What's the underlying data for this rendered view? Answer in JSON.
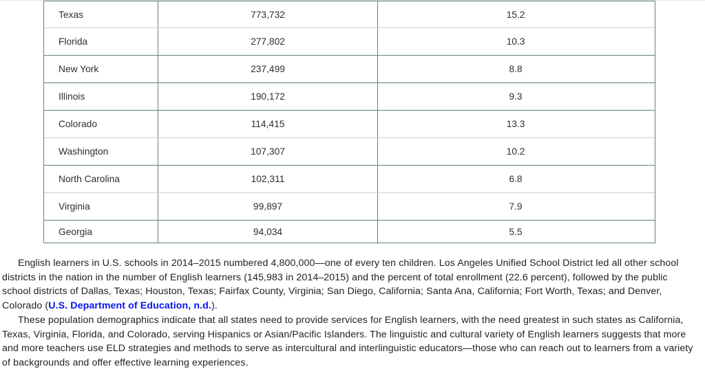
{
  "page": {
    "background_color": "#ffffff",
    "top_divider_color": "#e4e4e4"
  },
  "table": {
    "border_color_dark": "#627f7e",
    "border_color_light": "#c5d1cf",
    "rows": [
      {
        "state": "Texas",
        "english_learners": "773,732",
        "percent_of_enrollment": "15.2"
      },
      {
        "state": "Florida",
        "english_learners": "277,802",
        "percent_of_enrollment": "10.3"
      },
      {
        "state": "New York",
        "english_learners": "237,499",
        "percent_of_enrollment": "8.8"
      },
      {
        "state": "Illinois",
        "english_learners": "190,172",
        "percent_of_enrollment": "9.3"
      },
      {
        "state": "Colorado",
        "english_learners": "114,415",
        "percent_of_enrollment": "13.3"
      },
      {
        "state": "Washington",
        "english_learners": "107,307",
        "percent_of_enrollment": "10.2"
      },
      {
        "state": "North Carolina",
        "english_learners": "102,311",
        "percent_of_enrollment": "6.8"
      },
      {
        "state": "Virginia",
        "english_learners": "99,897",
        "percent_of_enrollment": "7.9"
      },
      {
        "state": "Georgia",
        "english_learners": "94,034",
        "percent_of_enrollment": "5.5"
      }
    ]
  },
  "paragraphs": {
    "p1": {
      "text_before": "English learners in U.S. schools in 2014–2015 numbered 4,800,000—one of every ten children. Los Angeles Unified School District led all other school districts in the nation in the number of English learners (145,983 in 2014–2015) and the percent of total enrollment (22.6 percent), followed by the public school districts of Dallas, Texas; Houston, Texas; Fairfax County, Virginia; San Diego, California; Santa Ana, California; Fort Worth, Texas; and Denver, Colorado (",
      "link_text": "U.S. Department of Education, n.d.",
      "text_after": ").",
      "link_color": "#0414f0"
    },
    "p2": {
      "text": "These population demographics indicate that all states need to provide services for English learners, with the need greatest in such states as California, Texas, Virginia, Florida, and Colorado, serving Hispanics or Asian/Pacific Islanders. The linguistic and cultural variety of English learners suggests that more and more teachers use ELD strategies and methods to serve as intercultural and interlinguistic educators—those who can reach out to learners from a variety of backgrounds and offer effective learning experiences."
    }
  }
}
